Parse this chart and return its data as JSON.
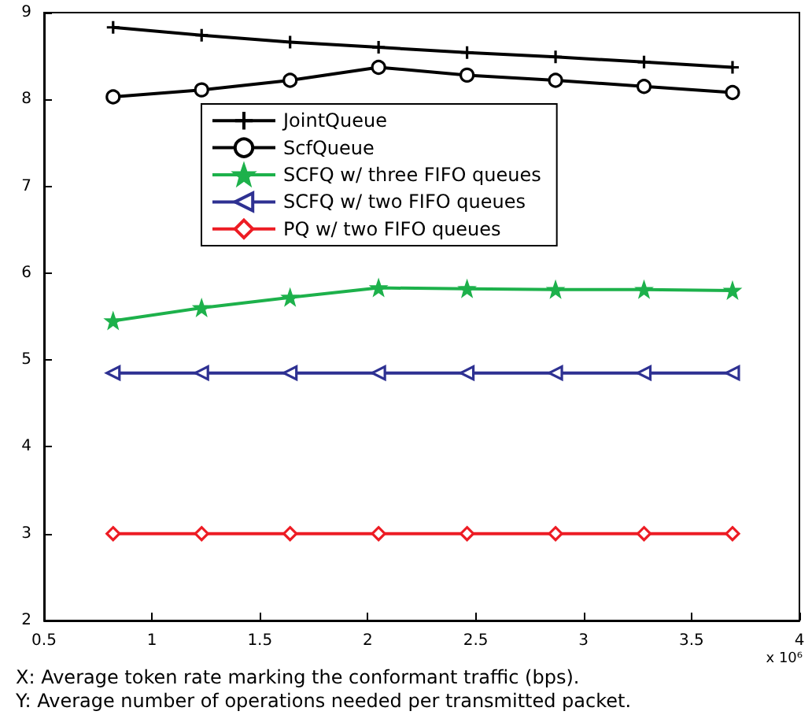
{
  "chart_data": {
    "type": "line",
    "x": [
      0.82,
      1.23,
      1.64,
      2.05,
      2.46,
      2.87,
      3.28,
      3.69
    ],
    "series": [
      {
        "name": "JointQueue",
        "color": "#000000",
        "marker": "cross",
        "values": [
          8.83,
          8.74,
          8.66,
          8.6,
          8.54,
          8.49,
          8.43,
          8.37
        ]
      },
      {
        "name": "ScfQueue",
        "color": "#000000",
        "marker": "circle",
        "values": [
          8.03,
          8.11,
          8.22,
          8.37,
          8.28,
          8.22,
          8.15,
          8.08
        ]
      },
      {
        "name": "SCFQ w/ three FIFO queues",
        "color": "#1db14b",
        "marker": "star",
        "values": [
          5.45,
          5.6,
          5.72,
          5.83,
          5.82,
          5.81,
          5.81,
          5.8
        ]
      },
      {
        "name": "SCFQ w/ two FIFO queues",
        "color": "#2e3192",
        "marker": "triangle",
        "values": [
          4.85,
          4.85,
          4.85,
          4.85,
          4.85,
          4.85,
          4.85,
          4.85
        ]
      },
      {
        "name": "PQ w/ two FIFO queues",
        "color": "#ed1c24",
        "marker": "diamond",
        "values": [
          3,
          3,
          3,
          3,
          3,
          3,
          3,
          3
        ]
      }
    ],
    "xlim": [
      0.5,
      4
    ],
    "xticks": [
      0.5,
      1,
      1.5,
      2,
      2.5,
      3,
      3.5,
      4
    ],
    "ylim": [
      2,
      9
    ],
    "yticks": [
      2,
      3,
      4,
      5,
      6,
      7,
      8,
      9
    ],
    "grid": false,
    "legend": "top",
    "line_style": "solid",
    "annotations": [
      "x 10⁶",
      "X: Average token rate marking the conformant traffic (bps).",
      "Y: Average number of operations needed per transmitted packet."
    ]
  }
}
